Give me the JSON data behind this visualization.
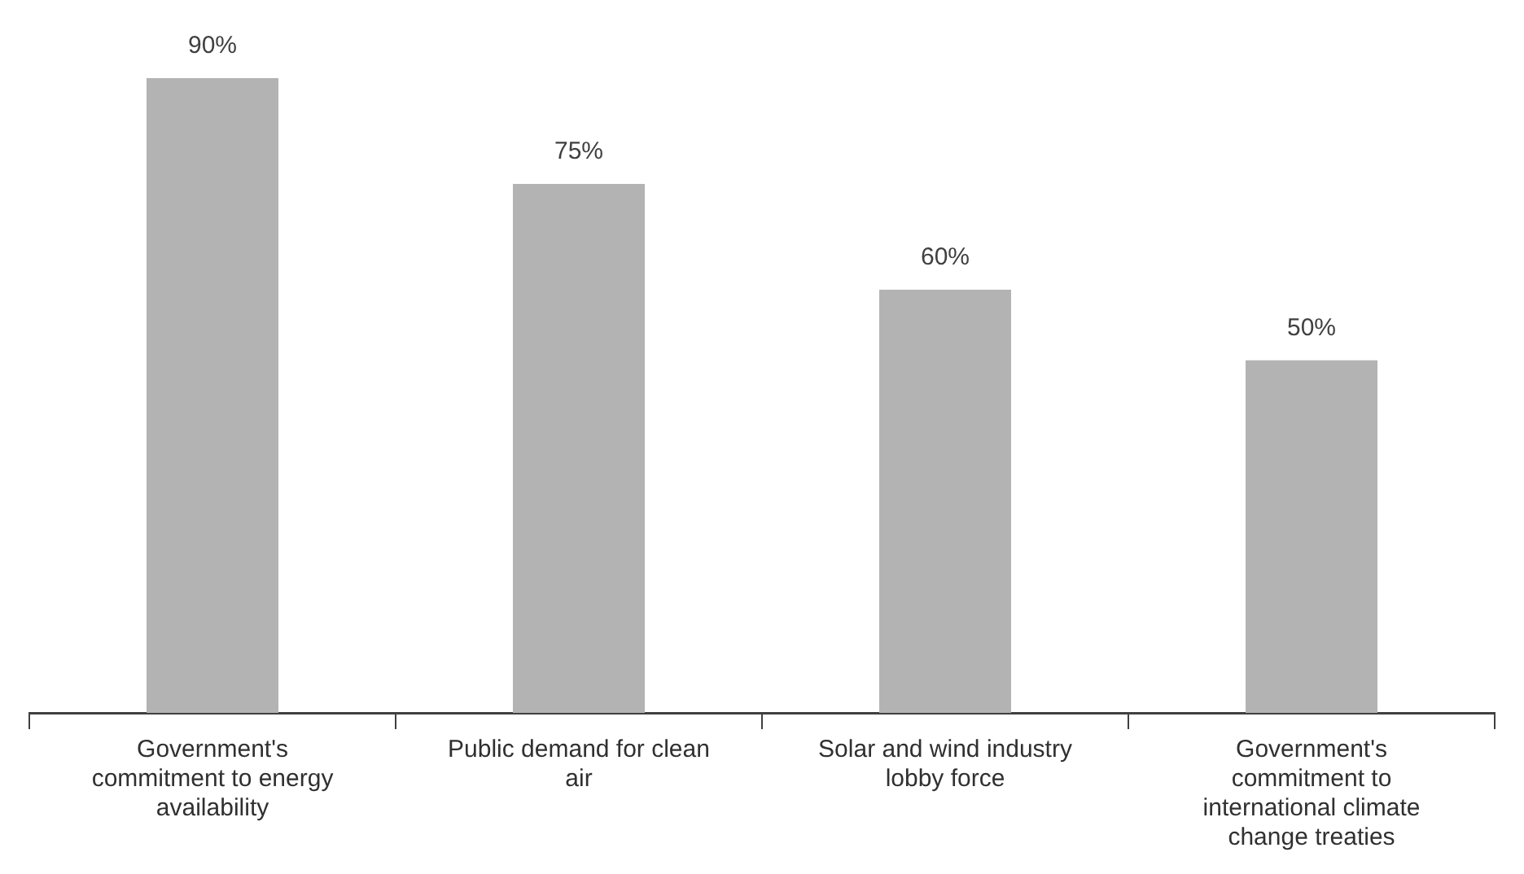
{
  "chart_data": {
    "type": "bar",
    "categories": [
      "Government's commitment to energy availability",
      "Public demand for clean air",
      "Solar and wind industry lobby force",
      "Government's commitment to international climate change treaties"
    ],
    "values": [
      90,
      75,
      60,
      50
    ],
    "value_labels": [
      "90%",
      "75%",
      "60%",
      "50%"
    ],
    "color": "#b3b3b3",
    "grid": false,
    "legend": false
  }
}
